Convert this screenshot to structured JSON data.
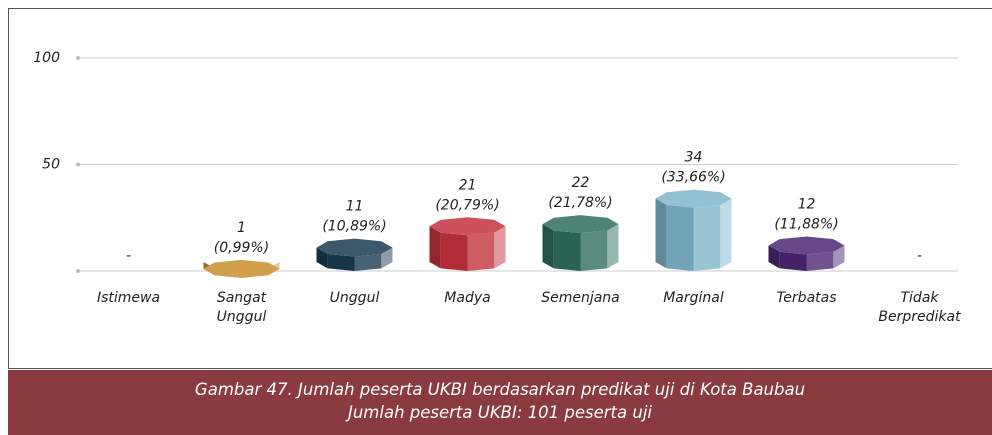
{
  "chart_data": {
    "type": "bar",
    "categories": [
      "Istimewa",
      "Sangat Unggul",
      "Unggul",
      "Madya",
      "Semenjana",
      "Marginal",
      "Terbatas",
      "Tidak Berpredikat"
    ],
    "values": [
      null,
      1,
      11,
      21,
      22,
      34,
      12,
      null
    ],
    "value_labels": [
      "-",
      "1",
      "11",
      "21",
      "22",
      "34",
      "12",
      "-"
    ],
    "percent_labels": [
      null,
      "(0,99%)",
      "(10,89%)",
      "(20,79%)",
      "(21,78%)",
      "(33,66%)",
      "(11,88%)",
      null
    ],
    "colors": [
      null,
      "#c98f2c",
      "#1b3b50",
      "#c3323d",
      "#2f6e5f",
      "#7fb6cb",
      "#4d2673",
      null
    ],
    "ylim": [
      0,
      100
    ],
    "yticks": [
      50,
      100
    ],
    "grid": true,
    "caption": [
      "Gambar 47. Jumlah peserta UKBI berdasarkan predikat uji di Kota Baubau",
      "Jumlah peserta UKBI: 101 peserta uji"
    ]
  }
}
